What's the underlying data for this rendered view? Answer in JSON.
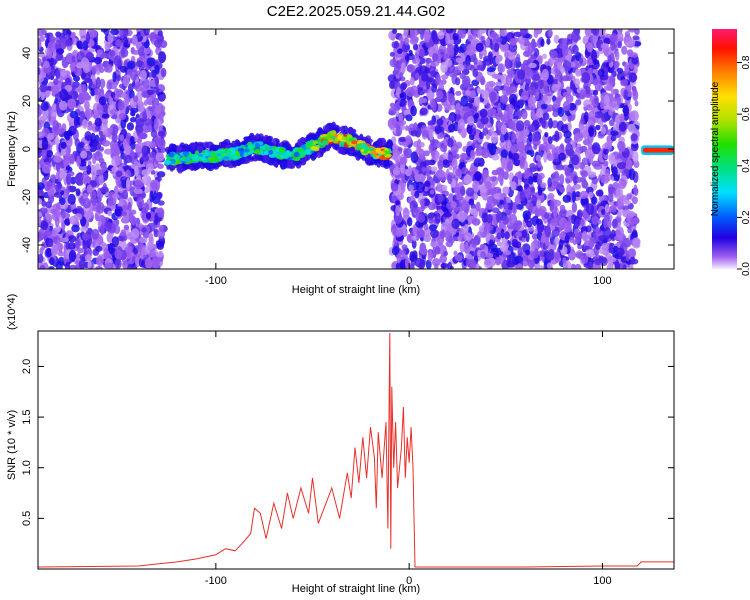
{
  "title": "C2E2.2025.059.21.44.G02",
  "chart_data": [
    {
      "type": "heatmap",
      "panel": "spectrogram",
      "xlabel": "Height of straight line (km)",
      "ylabel": "Frequency (Hz)",
      "xlim": [
        -192,
        137
      ],
      "ylim": [
        -50,
        50
      ],
      "xticks": [
        -100,
        0,
        100
      ],
      "yticks": [
        -40,
        -20,
        0,
        20,
        40
      ],
      "colorbar": {
        "label": "Normalized spectral amplitude",
        "range": [
          0.0,
          0.93
        ],
        "ticks": [
          0.0,
          0.2,
          0.4,
          0.6,
          0.8
        ]
      },
      "regions": [
        {
          "x_range": [
            -192,
            -127
          ],
          "freq_range": [
            -50,
            50
          ],
          "amplitude": "low, scattered"
        },
        {
          "x_range": [
            -125,
            -10
          ],
          "freq_range": [
            -10,
            8
          ],
          "amplitude": "medium to high along a curved band"
        },
        {
          "x_range": [
            -9,
            118
          ],
          "freq_range": [
            -50,
            50
          ],
          "amplitude": "low, scattered"
        },
        {
          "x_range": [
            120,
            137
          ],
          "freq_range": [
            -2,
            1
          ],
          "amplitude": "high, narrow line at 0 Hz"
        }
      ],
      "ridge": {
        "x": [
          -128,
          -120,
          -110,
          -100,
          -90,
          -80,
          -70,
          -60,
          -50,
          -40,
          -30,
          -20,
          -12
        ],
        "y": [
          -4,
          -4,
          -3,
          -3,
          -2,
          1,
          -1,
          -3,
          1,
          5,
          3,
          -1,
          -2
        ]
      },
      "grid": false,
      "legend": "colorbar at right"
    },
    {
      "type": "line",
      "panel": "snr",
      "xlabel": "Height of straight line (km)",
      "ylabel": "SNR (10 * v/v)",
      "y_multiplier": "(x10^4)",
      "xlim": [
        -192,
        137
      ],
      "ylim": [
        0,
        2.35
      ],
      "xticks": [
        -100,
        0,
        100
      ],
      "yticks": [
        0.5,
        1.0,
        1.5,
        2.0
      ],
      "color": "#e8302a",
      "series": [
        {
          "x": [
            -192,
            -140,
            -130,
            -120,
            -110,
            -100,
            -95,
            -90,
            -85,
            -82,
            -80,
            -77,
            -74,
            -70,
            -66,
            -63,
            -60,
            -56,
            -52,
            -50,
            -47,
            -44,
            -40,
            -36,
            -32,
            -30,
            -28,
            -26,
            -24,
            -22,
            -20,
            -18,
            -17,
            -16,
            -14,
            -12,
            -11,
            -10,
            -9.5,
            -9,
            -8,
            -7,
            -6,
            -4,
            -3,
            -2,
            -1,
            0,
            1,
            2,
            3,
            5,
            20,
            60,
            100,
            118,
            120,
            137
          ],
          "y": [
            0.02,
            0.03,
            0.05,
            0.07,
            0.1,
            0.14,
            0.2,
            0.18,
            0.28,
            0.35,
            0.6,
            0.55,
            0.3,
            0.65,
            0.4,
            0.75,
            0.5,
            0.8,
            0.55,
            0.9,
            0.45,
            0.6,
            0.8,
            0.5,
            0.95,
            0.7,
            1.2,
            0.85,
            1.3,
            0.9,
            1.4,
            1.1,
            0.6,
            1.35,
            0.9,
            1.45,
            0.4,
            2.33,
            0.2,
            1.8,
            1.0,
            1.45,
            0.8,
            1.2,
            1.6,
            0.9,
            1.3,
            1.05,
            1.4,
            1.0,
            0.02,
            0.02,
            0.02,
            0.02,
            0.03,
            0.03,
            0.07,
            0.07
          ]
        }
      ],
      "grid": false
    }
  ]
}
